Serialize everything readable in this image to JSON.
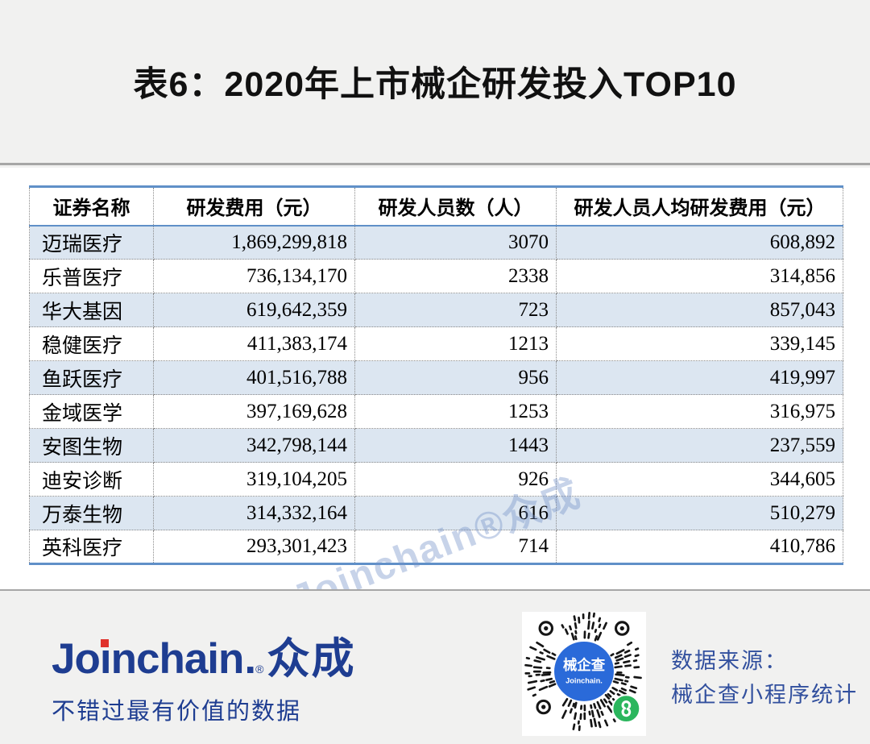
{
  "title": "表6：2020年上市械企研发投入TOP10",
  "table": {
    "headers": [
      "证券名称",
      "研发费用（元）",
      "研发人员数（人）",
      "研发人员人均研发费用（元）"
    ],
    "rows": [
      [
        "迈瑞医疗",
        "1,869,299,818",
        "3070",
        "608,892"
      ],
      [
        "乐普医疗",
        "736,134,170",
        "2338",
        "314,856"
      ],
      [
        "华大基因",
        "619,642,359",
        "723",
        "857,043"
      ],
      [
        "稳健医疗",
        "411,383,174",
        "1213",
        "339,145"
      ],
      [
        "鱼跃医疗",
        "401,516,788",
        "956",
        "419,997"
      ],
      [
        "金域医学",
        "397,169,628",
        "1253",
        "316,975"
      ],
      [
        "安图生物",
        "342,798,144",
        "1443",
        "237,559"
      ],
      [
        "迪安诊断",
        "319,104,205",
        "926",
        "344,605"
      ],
      [
        "万泰生物",
        "314,332,164",
        "616",
        "510,279"
      ],
      [
        "英科医疗",
        "293,301,423",
        "714",
        "410,786"
      ]
    ]
  },
  "watermark": "Joinchain®众成",
  "footer": {
    "logo": {
      "jo": "Jo",
      "i": "i",
      "nchain": "nchain",
      "dot": ".",
      "reg": "®",
      "cn": "众成",
      "tagline": "不错过最有价值的数据"
    },
    "qr": {
      "center_title": "械企查",
      "center_subtitle": "Joinchain."
    },
    "source_line1": "数据来源：",
    "source_line2": "械企查小程序统计"
  },
  "colors": {
    "page_background": "#f1f1f0",
    "table_section_background": "#ffffff",
    "table_border_blue": "#6090c8",
    "row_stripe_blue": "#dce6f1",
    "divider_gray": "#a6a6a6",
    "logo_navy": "#1e3d91",
    "logo_i_dot_red": "#e0322c",
    "source_text_blue": "#32509e",
    "qr_badge_blue": "#2a6ad9",
    "miniprogram_green": "#2bb65d",
    "watermark_blue": "rgba(116,146,199,0.40)"
  },
  "chart_data": {
    "type": "table",
    "title": "表6：2020年上市械企研发投入TOP10",
    "columns": [
      "证券名称",
      "研发费用（元）",
      "研发人员数（人）",
      "研发人员人均研发费用（元）"
    ],
    "rows": [
      [
        "迈瑞医疗",
        1869299818,
        3070,
        608892
      ],
      [
        "乐普医疗",
        736134170,
        2338,
        314856
      ],
      [
        "华大基因",
        619642359,
        723,
        857043
      ],
      [
        "稳健医疗",
        411383174,
        1213,
        339145
      ],
      [
        "鱼跃医疗",
        401516788,
        956,
        419997
      ],
      [
        "金域医学",
        397169628,
        1253,
        316975
      ],
      [
        "安图生物",
        342798144,
        1443,
        237559
      ],
      [
        "迪安诊断",
        319104205,
        926,
        344605
      ],
      [
        "万泰生物",
        314332164,
        616,
        510279
      ],
      [
        "英科医疗",
        293301423,
        714,
        410786
      ]
    ],
    "source": "数据来源：械企查小程序统计"
  }
}
